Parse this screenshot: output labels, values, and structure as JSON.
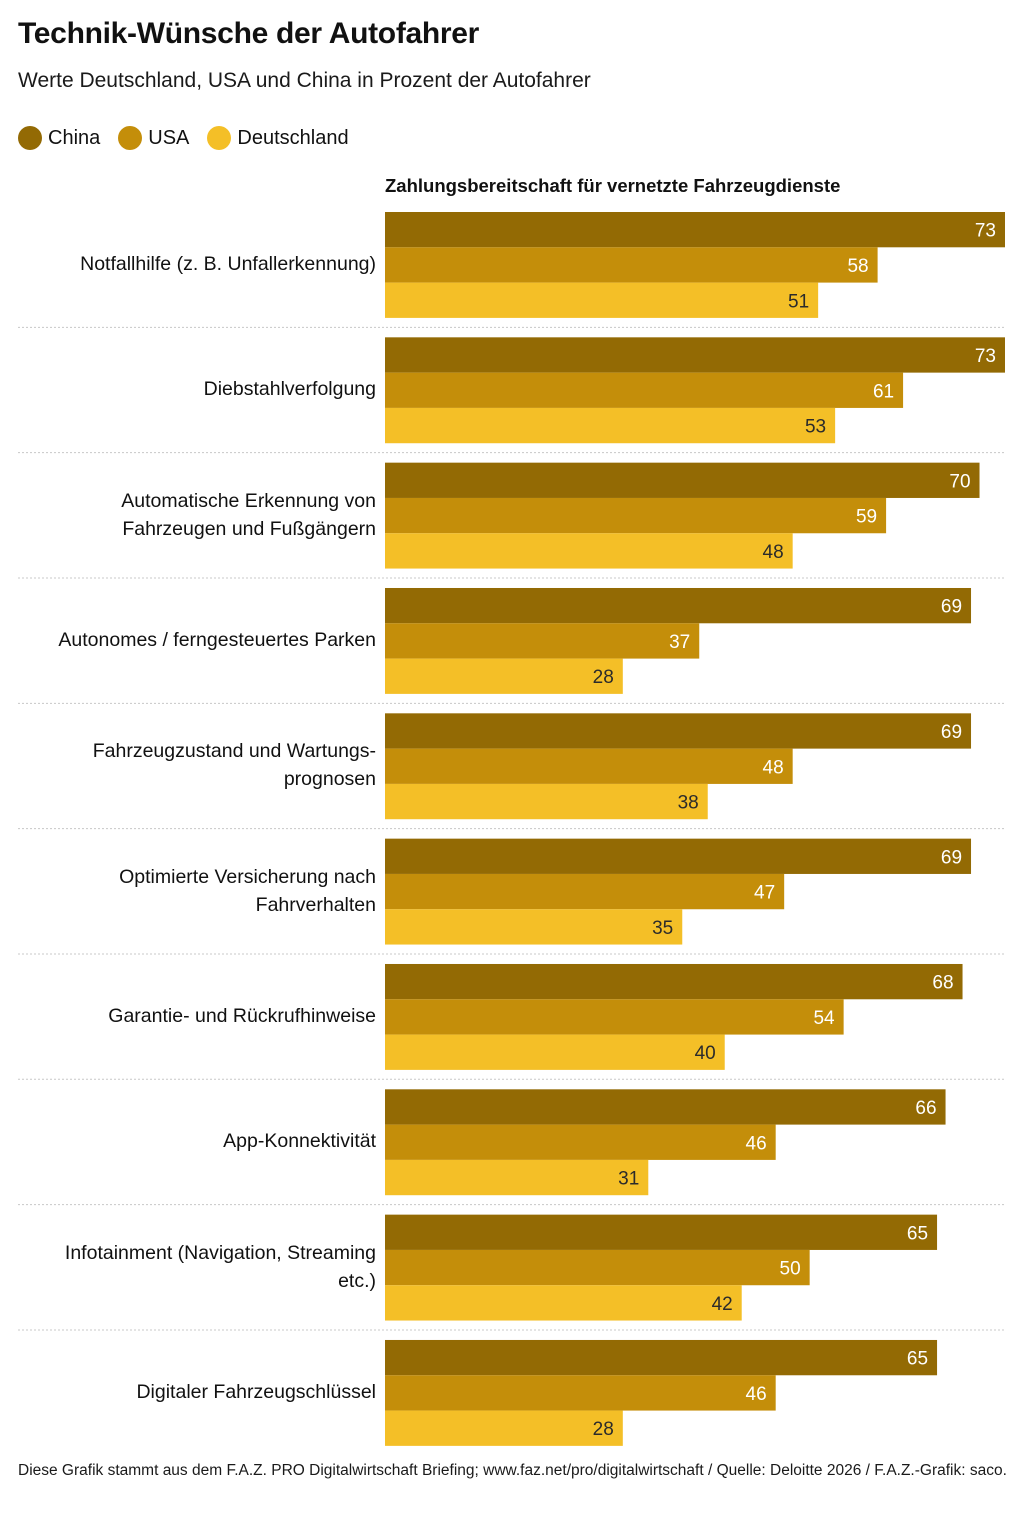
{
  "header": {
    "title": "Technik-Wünsche der Autofahrer",
    "subtitle": "Werte Deutschland, USA und China in Prozent der Autofahrer"
  },
  "legend": [
    {
      "label": "China",
      "color": "#936a04"
    },
    {
      "label": "USA",
      "color": "#c48e0a"
    },
    {
      "label": "Deutschland",
      "color": "#f4bf27"
    }
  ],
  "footer": {
    "text": "Diese Grafik stammt aus dem F.A.Z. PRO Digitalwirtschaft Briefing; www.faz.net/pro/digitalwirtschaft / Quelle: Deloitte 2026 / F.A.Z.-Grafik: saco."
  },
  "chart_data": {
    "type": "bar",
    "orientation": "horizontal",
    "title": "Zahlungsbereitschaft für vernetzte Fahrzeugdienste",
    "xlabel": "",
    "ylabel": "",
    "xlim": [
      0,
      73
    ],
    "grid": false,
    "legend_position": "top-left",
    "categories": [
      "Notfallhilfe (z. B. Unfallerkennung)",
      "Diebstahlverfolgung",
      "Automatische Erkennung von Fahrzeugen und Fußgängern",
      "Autonomes / ferngesteuertes Parken",
      "Fahrzeugzustand und Wartungs-prognosen",
      "Optimierte Versicherung nach Fahrverhalten",
      "Garantie- und Rückrufhinweise",
      "App-Konnektivität",
      "Infotainment (Navigation, Streaming etc.)",
      "Digitaler Fahrzeugschlüssel"
    ],
    "series": [
      {
        "name": "China",
        "color": "#936a04",
        "label_color": "#ffffff",
        "values": [
          73,
          73,
          70,
          69,
          69,
          69,
          68,
          66,
          65,
          65
        ]
      },
      {
        "name": "USA",
        "color": "#c48e0a",
        "label_color": "#ffffff",
        "values": [
          58,
          61,
          59,
          37,
          48,
          47,
          54,
          46,
          50,
          46
        ]
      },
      {
        "name": "Deutschland",
        "color": "#f4bf27",
        "label_color": "#2b2b2b",
        "values": [
          51,
          53,
          48,
          28,
          38,
          35,
          40,
          31,
          42,
          28
        ]
      }
    ],
    "category_lines": [
      [
        "Notfallhilfe (z. B. Unfallerkennung)"
      ],
      [
        "Diebstahlverfolgung"
      ],
      [
        "Automatische Erkennung von",
        "Fahrzeugen und Fußgängern"
      ],
      [
        "Autonomes / ferngesteuertes Parken"
      ],
      [
        "Fahrzeugzustand und Wartungs-",
        "prognosen"
      ],
      [
        "Optimierte Versicherung nach",
        "Fahrverhalten"
      ],
      [
        "Garantie- und Rückrufhinweise"
      ],
      [
        "App-Konnektivität"
      ],
      [
        "Infotainment (Navigation, Streaming",
        "etc.)"
      ],
      [
        "Digitaler Fahrzeugschlüssel"
      ]
    ]
  }
}
